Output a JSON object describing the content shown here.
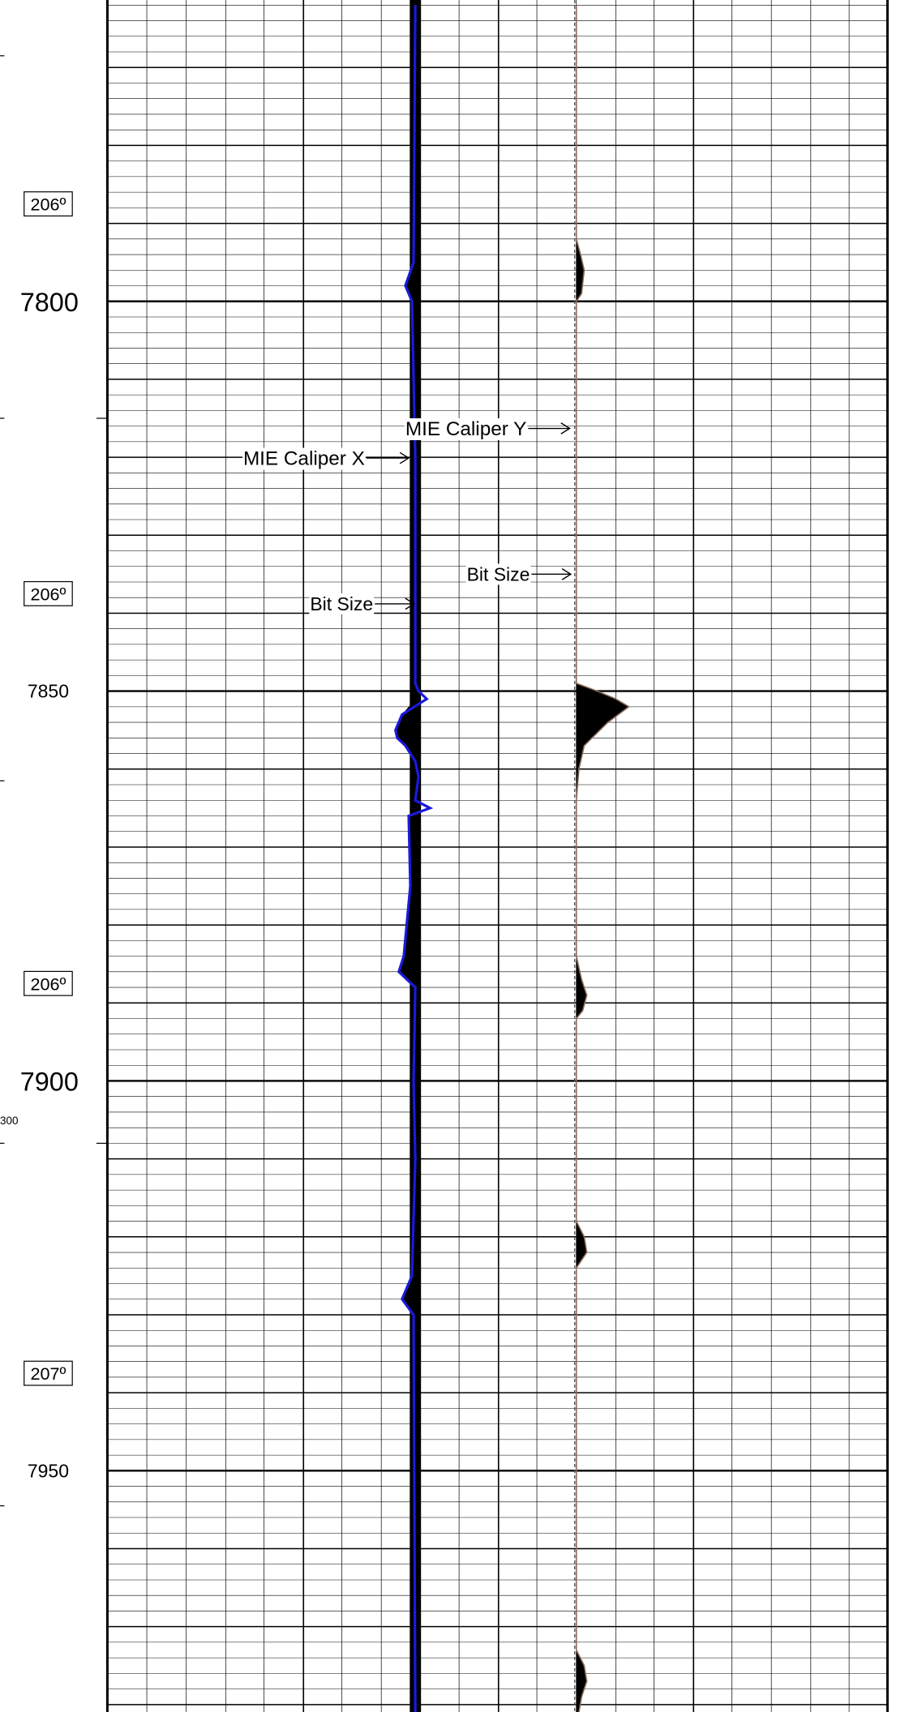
{
  "log": {
    "depth_labels": [
      {
        "text": "7800",
        "depth": 7800,
        "size": "large"
      },
      {
        "text": "7850",
        "depth": 7850,
        "size": "small"
      },
      {
        "text": "7900",
        "depth": 7900,
        "size": "large"
      },
      {
        "text": "7950",
        "depth": 7950,
        "size": "small"
      }
    ],
    "temperature_labels": [
      {
        "text": "206º",
        "depth": 7787.5
      },
      {
        "text": "206º",
        "depth": 7837.5
      },
      {
        "text": "206º",
        "depth": 7887.5
      },
      {
        "text": "207º",
        "depth": 7937.5
      }
    ],
    "edge_fragment": "300",
    "annotations": {
      "caliper_y": "MIE Caliper Y",
      "caliper_x": "MIE Caliper X",
      "bit_size_right": "Bit Size",
      "bit_size_left": "Bit Size"
    },
    "colors": {
      "caliper_x": "#1a1adb",
      "caliper_y": "#8a6a5a",
      "bit_size": "#000000",
      "grid": "#000000"
    }
  },
  "chart_data": {
    "type": "line",
    "title": "",
    "ylabel": "",
    "xlabel": "",
    "depth_range": [
      7762,
      7981
    ],
    "grid": true,
    "series": [
      {
        "name": "MIE Caliper X",
        "track": "left",
        "depth": [
          7762,
          7795,
          7798,
          7800,
          7820,
          7849,
          7850,
          7851,
          7853,
          7855,
          7856,
          7857,
          7859,
          7861,
          7864,
          7865,
          7866,
          7875,
          7884,
          7886,
          7888,
          7900,
          7910,
          7925,
          7928,
          7930,
          7981
        ],
        "offset": [
          0.0,
          -0.05,
          -0.3,
          -0.1,
          0.0,
          0.0,
          0.1,
          0.35,
          -0.4,
          -0.6,
          -0.55,
          -0.3,
          0.0,
          0.1,
          0.0,
          0.45,
          -0.2,
          -0.15,
          -0.35,
          -0.5,
          0.0,
          -0.05,
          0.0,
          -0.1,
          -0.4,
          -0.05,
          0.0
        ]
      },
      {
        "name": "MIE Caliper Y",
        "track": "right",
        "depth": [
          7762,
          7792,
          7794,
          7796,
          7799,
          7800,
          7849,
          7850,
          7851,
          7852,
          7854,
          7856,
          7857,
          7860,
          7864,
          7884,
          7887,
          7889,
          7891,
          7892,
          7918,
          7920,
          7922,
          7924,
          7973,
          7975,
          7977,
          7979,
          7981
        ],
        "offset": [
          0.0,
          0.0,
          0.08,
          0.15,
          0.1,
          0.0,
          0.0,
          0.4,
          0.75,
          1.0,
          0.6,
          0.3,
          0.15,
          0.05,
          0.0,
          0.0,
          0.1,
          0.2,
          0.12,
          0.0,
          0.0,
          0.15,
          0.2,
          0.0,
          0.0,
          0.15,
          0.2,
          0.1,
          0.05
        ]
      },
      {
        "name": "Bit Size",
        "track": "left",
        "depth": [
          7762,
          7981
        ],
        "offset": [
          0.0,
          0.0
        ]
      },
      {
        "name": "Bit Size",
        "track": "right",
        "depth": [
          7762,
          7981
        ],
        "offset": [
          0.0,
          0.0
        ]
      }
    ]
  }
}
